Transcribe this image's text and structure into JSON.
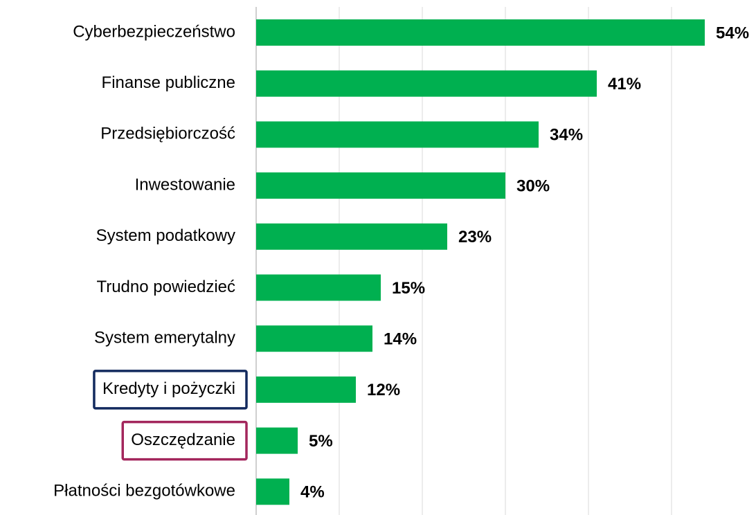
{
  "chart_data": {
    "type": "hbar",
    "categories": [
      "Cyberbezpieczeństwo",
      "Finanse publiczne",
      "Przedsiębiorczość",
      "Inwestowanie",
      "System podatkowy",
      "Trudno powiedzieć",
      "System emerytalny",
      "Kredyty i pożyczki",
      "Oszczędzanie",
      "Płatności bezgotówkowe"
    ],
    "values": [
      54,
      41,
      34,
      30,
      23,
      15,
      14,
      12,
      5,
      4
    ],
    "value_labels": [
      "54%",
      "41%",
      "34%",
      "30%",
      "23%",
      "15%",
      "14%",
      "12%",
      "5%",
      "4%"
    ],
    "color": "#00b050",
    "label_box_colors": [
      null,
      null,
      null,
      null,
      null,
      null,
      null,
      "#132a5e",
      "#a3265c",
      null
    ],
    "xlim": [
      0,
      60
    ],
    "xticks": [
      0,
      10,
      20,
      30,
      40,
      50
    ],
    "grid": true
  }
}
